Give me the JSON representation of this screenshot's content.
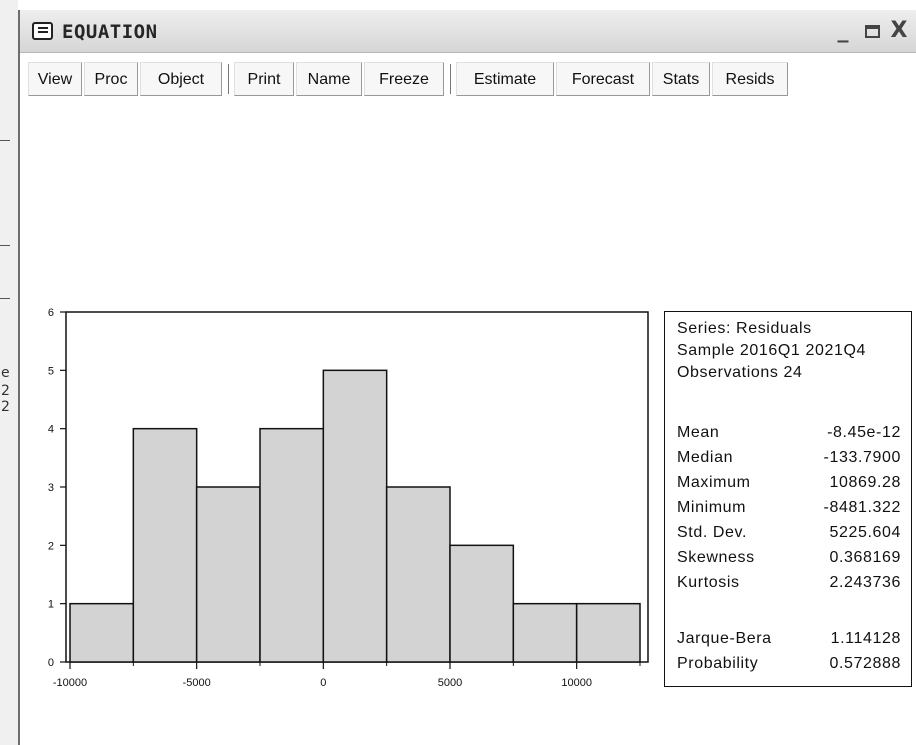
{
  "window": {
    "title": "EQUATION",
    "minimize": "_",
    "maximize": "▭",
    "close": "X"
  },
  "toolbar": {
    "buttons": [
      "View",
      "Proc",
      "Object",
      "Print",
      "Name",
      "Freeze",
      "Estimate",
      "Forecast",
      "Stats",
      "Resids"
    ]
  },
  "background_fragments": [
    "e",
    "2",
    "2"
  ],
  "chart_data": {
    "type": "bar",
    "title": "",
    "xlabel": "",
    "ylabel": "",
    "bin_edges": [
      -10000,
      -7500,
      -5000,
      -2500,
      0,
      2500,
      5000,
      7500,
      10000,
      12500
    ],
    "values": [
      1,
      4,
      3,
      4,
      5,
      3,
      2,
      1,
      1
    ],
    "x_ticks": [
      -10000,
      -5000,
      0,
      5000,
      10000
    ],
    "x_tick_labels": [
      "-10000",
      "-5000",
      "0",
      "5000",
      "10000"
    ],
    "y_ticks": [
      0,
      1,
      2,
      3,
      4,
      5,
      6
    ],
    "y_tick_labels": [
      "0",
      "1",
      "2",
      "3",
      "4",
      "5",
      "6"
    ],
    "xlim": [
      -10000,
      12500
    ],
    "ylim": [
      0,
      6
    ],
    "bar_color": "#d3d3d3",
    "grid": false
  },
  "stats": {
    "series": "Series: Residuals",
    "sample": "Sample 2016Q1 2021Q4",
    "observations": "Observations 24",
    "rows": [
      {
        "label": "Mean",
        "value": "-8.45e-12"
      },
      {
        "label": "Median",
        "value": "-133.7900"
      },
      {
        "label": "Maximum",
        "value": "10869.28"
      },
      {
        "label": "Minimum",
        "value": "-8481.322"
      },
      {
        "label": "Std. Dev.",
        "value": "5225.604"
      },
      {
        "label": "Skewness",
        "value": "0.368169"
      },
      {
        "label": "Kurtosis",
        "value": "2.243736"
      }
    ],
    "test_rows": [
      {
        "label": "Jarque-Bera",
        "value": "1.114128"
      },
      {
        "label": "Probability",
        "value": "0.572888"
      }
    ]
  }
}
